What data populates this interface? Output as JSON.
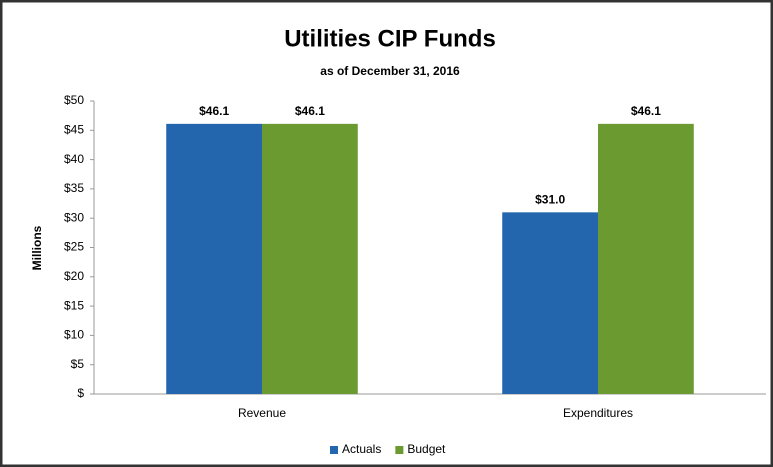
{
  "chart_data": {
    "type": "bar",
    "title": "Utilities CIP Funds",
    "subtitle": "as of December 31, 2016",
    "ylabel": "Millions",
    "categories": [
      "Revenue",
      "Expenditures"
    ],
    "series": [
      {
        "name": "Actuals",
        "color": "#2466ad",
        "values": [
          46.1,
          31.0
        ],
        "value_labels": [
          "$46.1",
          "$31.0"
        ]
      },
      {
        "name": "Budget",
        "color": "#6b9a31",
        "values": [
          46.1,
          46.1
        ],
        "value_labels": [
          "$46.1",
          "$46.1"
        ]
      }
    ],
    "ylim": [
      0,
      50
    ],
    "yticks": [
      {
        "value": 0,
        "label": "$"
      },
      {
        "value": 5,
        "label": "$5"
      },
      {
        "value": 10,
        "label": "$10"
      },
      {
        "value": 15,
        "label": "$15"
      },
      {
        "value": 20,
        "label": "$20"
      },
      {
        "value": 25,
        "label": "$25"
      },
      {
        "value": 30,
        "label": "$30"
      },
      {
        "value": 35,
        "label": "$35"
      },
      {
        "value": 40,
        "label": "$40"
      },
      {
        "value": 45,
        "label": "$45"
      },
      {
        "value": 50,
        "label": "$50"
      }
    ],
    "grid": false,
    "legend": "bottom"
  }
}
